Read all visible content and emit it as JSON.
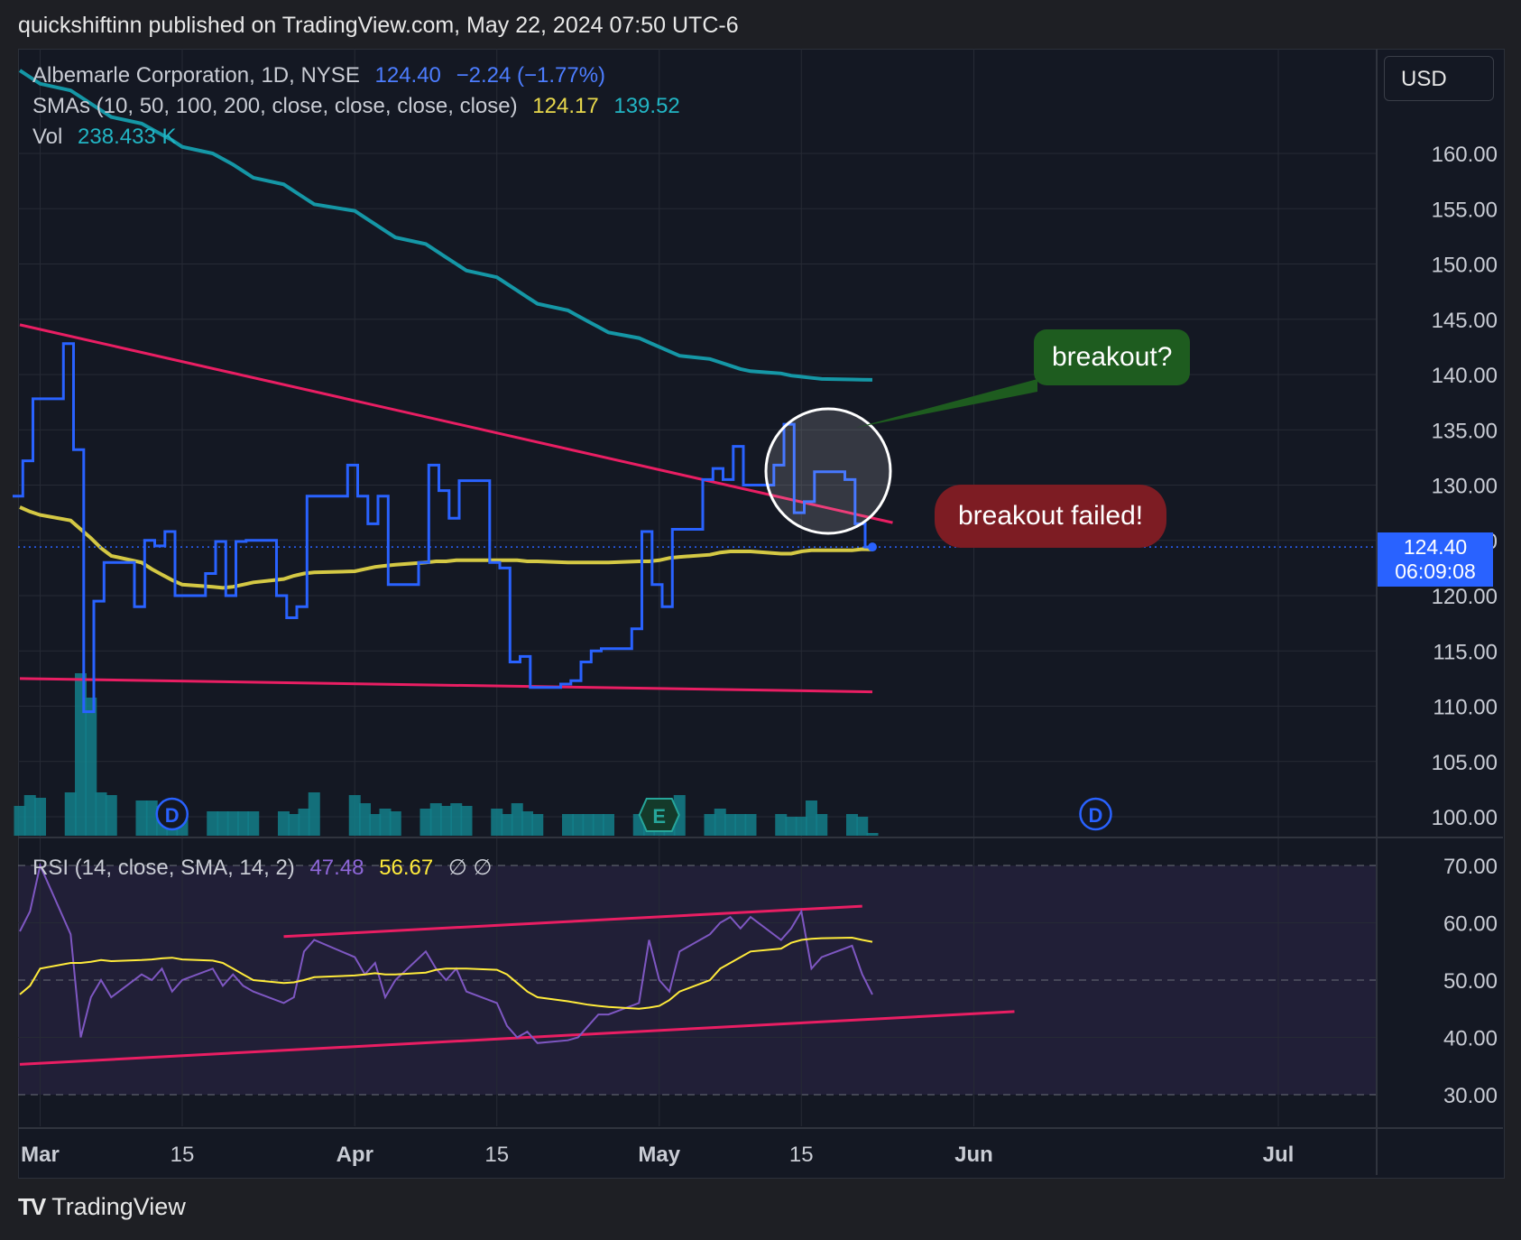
{
  "header": {
    "published": "quickshiftinn published on TradingView.com, May 22, 2024 07:50 UTC-6"
  },
  "legend": {
    "symbol": "Albemarle Corporation, 1D, NYSE",
    "price": "124.40",
    "change": "−2.24 (−1.77%)",
    "sma_label": "SMAs (10, 50, 100, 200, close, close, close, close)",
    "sma_val1": "124.17",
    "sma_val2": "139.52",
    "vol_label": "Vol",
    "vol_value": "238.433 K",
    "rsi_label": "RSI (14, close, SMA, 14, 2)",
    "rsi_val1": "47.48",
    "rsi_val2": "56.67",
    "rsi_extra": "∅ ∅"
  },
  "currency": "USD",
  "price_tag": {
    "price": "124.40",
    "countdown": "06:09:08"
  },
  "annotations": {
    "breakout_q": "breakout?",
    "breakout_failed": "breakout failed!"
  },
  "footer": {
    "brand": "TradingView"
  },
  "colors": {
    "price": "#2962ff",
    "sma_short": "#d4c844",
    "sma_long": "#1597a6",
    "trend": "#e91e63",
    "rsi": "#7e57c2",
    "rsi_ma": "#ffeb3b",
    "volume": "#137f8a"
  },
  "chart_data": [
    {
      "type": "line",
      "title": "Albemarle Corporation, 1D, NYSE",
      "x_ticks": [
        "Mar",
        "15",
        "Apr",
        "15",
        "May",
        "15",
        "Jun",
        "Jul"
      ],
      "x": [
        "2024-02-28",
        "2024-02-29",
        "2024-03-01",
        "2024-03-04",
        "2024-03-05",
        "2024-03-06",
        "2024-03-07",
        "2024-03-08",
        "2024-03-11",
        "2024-03-12",
        "2024-03-13",
        "2024-03-14",
        "2024-03-15",
        "2024-03-18",
        "2024-03-19",
        "2024-03-20",
        "2024-03-21",
        "2024-03-22",
        "2024-03-25",
        "2024-03-26",
        "2024-03-27",
        "2024-03-28",
        "2024-04-01",
        "2024-04-02",
        "2024-04-03",
        "2024-04-04",
        "2024-04-05",
        "2024-04-08",
        "2024-04-09",
        "2024-04-10",
        "2024-04-11",
        "2024-04-12",
        "2024-04-15",
        "2024-04-16",
        "2024-04-17",
        "2024-04-18",
        "2024-04-19",
        "2024-04-22",
        "2024-04-23",
        "2024-04-24",
        "2024-04-25",
        "2024-04-26",
        "2024-04-29",
        "2024-04-30",
        "2024-05-01",
        "2024-05-02",
        "2024-05-03",
        "2024-05-06",
        "2024-05-07",
        "2024-05-08",
        "2024-05-09",
        "2024-05-10",
        "2024-05-13",
        "2024-05-14",
        "2024-05-15",
        "2024-05-16",
        "2024-05-17",
        "2024-05-20",
        "2024-05-21",
        "2024-05-22"
      ],
      "y_ticks": [
        "100.00",
        "105.00",
        "110.00",
        "115.00",
        "120.00",
        "125.00",
        "130.00",
        "135.00",
        "140.00",
        "145.00",
        "150.00",
        "155.00",
        "160.00"
      ],
      "ylim": [
        98.8,
        168.5
      ],
      "series": [
        {
          "name": "Albemarle Corporation",
          "values": [
            129.0,
            132.2,
            137.8,
            142.8,
            133.2,
            109.5,
            119.5,
            123.0,
            119.0,
            125.0,
            124.5,
            125.8,
            120.0,
            122.0,
            124.9,
            120.0,
            124.9,
            125.0,
            120.0,
            118.0,
            119.0,
            129.0,
            131.8,
            129.0,
            126.5,
            129.0,
            121.0,
            123.0,
            131.8,
            129.5,
            127.0,
            130.4,
            123.0,
            122.5,
            114.0,
            114.5,
            111.7,
            112.0,
            112.3,
            114.0,
            115.0,
            115.2,
            117.0,
            125.8,
            121.0,
            119.0,
            126.0,
            130.5,
            131.5,
            130.5,
            133.5,
            130.0,
            131.8,
            135.5,
            127.5,
            128.5,
            131.2,
            130.5,
            126.5,
            124.4
          ]
        },
        {
          "name": "SMA",
          "values": [
            128.0,
            127.6,
            127.3,
            126.8,
            126.0,
            125.2,
            124.3,
            123.6,
            123.0,
            122.4,
            121.9,
            121.4,
            121.0,
            120.8,
            120.7,
            120.8,
            121.0,
            121.2,
            121.5,
            121.8,
            122.0,
            122.1,
            122.2,
            122.4,
            122.6,
            122.7,
            122.8,
            123.0,
            123.1,
            123.1,
            123.2,
            123.2,
            123.2,
            123.2,
            123.2,
            123.1,
            123.1,
            123.0,
            123.0,
            123.0,
            123.0,
            123.0,
            123.1,
            123.1,
            123.2,
            123.4,
            123.5,
            123.7,
            123.9,
            124.0,
            124.0,
            124.0,
            123.8,
            123.8,
            124.0,
            124.1,
            124.1,
            124.1,
            124.2,
            124.17
          ]
        },
        {
          "name": "SMA 200",
          "values": [
            167.5,
            166.9,
            166.3,
            165.7,
            165.1,
            164.5,
            163.9,
            163.3,
            162.7,
            162.2,
            161.7,
            161.2,
            160.6,
            160.0,
            159.5,
            159.0,
            158.4,
            157.8,
            157.2,
            156.6,
            156.0,
            155.4,
            154.8,
            154.2,
            153.6,
            153.0,
            152.4,
            151.8,
            151.2,
            150.6,
            150.0,
            149.4,
            148.8,
            148.2,
            147.6,
            147.0,
            146.4,
            145.8,
            145.3,
            144.8,
            144.3,
            143.8,
            143.3,
            142.9,
            142.5,
            142.1,
            141.7,
            141.4,
            141.1,
            140.8,
            140.5,
            140.3,
            140.1,
            139.9,
            139.8,
            139.7,
            139.6,
            139.55,
            139.53,
            139.52
          ]
        }
      ],
      "trendlines": [
        {
          "from": [
            "2024-02-28",
            144.5
          ],
          "to": [
            "2024-05-24",
            126.6
          ]
        },
        {
          "from": [
            "2024-02-28",
            112.5
          ],
          "to": [
            "2024-05-22",
            111.3
          ]
        }
      ]
    },
    {
      "type": "bar",
      "title": "Vol",
      "x": "same as price chart",
      "values": [
        55,
        75,
        70,
        80,
        300,
        255,
        80,
        75,
        65,
        65,
        55,
        55,
        40,
        45,
        45,
        45,
        45,
        45,
        45,
        40,
        50,
        80,
        75,
        60,
        40,
        50,
        45,
        50,
        60,
        55,
        60,
        55,
        50,
        40,
        60,
        45,
        40,
        40,
        40,
        40,
        40,
        40,
        40,
        35,
        65,
        60,
        75,
        40,
        50,
        40,
        40,
        40,
        40,
        35,
        35,
        65,
        40,
        40,
        35,
        5
      ],
      "ylim": [
        0,
        320
      ]
    },
    {
      "type": "line",
      "title": "RSI (14, close, SMA, 14, 2)",
      "y_ticks": [
        "30.00",
        "40.00",
        "50.00",
        "60.00",
        "70.00"
      ],
      "ylim": [
        25,
        73
      ],
      "series": [
        {
          "name": "RSI",
          "values": [
            58.5,
            62,
            70,
            58,
            40,
            47,
            50,
            47,
            51,
            50,
            52,
            48,
            50,
            52,
            49,
            51,
            49,
            48,
            46,
            47,
            55,
            57,
            54,
            51,
            53,
            47,
            50,
            55,
            52,
            50,
            52,
            48,
            46,
            42,
            40,
            41,
            39,
            39.5,
            40,
            42,
            44,
            44,
            46,
            57,
            50,
            48,
            55,
            58,
            60,
            61,
            59,
            61,
            57,
            59,
            62,
            52,
            54,
            56,
            51,
            47.48
          ]
        },
        {
          "name": "SMA",
          "values": [
            47.5,
            49,
            52,
            53,
            53,
            53.2,
            53.5,
            53.3,
            53.5,
            53.6,
            53.8,
            53.9,
            53.6,
            53.4,
            53,
            52,
            51,
            50,
            49.5,
            49.6,
            50,
            50.5,
            50.8,
            51,
            51.2,
            51,
            51,
            51.3,
            51.8,
            52,
            52,
            52,
            51.8,
            51,
            49.5,
            48,
            47,
            46.3,
            46,
            45.7,
            45.5,
            45.3,
            45,
            45.2,
            45.5,
            46.5,
            48,
            50,
            52,
            53,
            54,
            55,
            55.5,
            56.5,
            57,
            57.2,
            57.3,
            57.4,
            57,
            56.67
          ]
        }
      ],
      "trendlines": [
        {
          "from": [
            "2024-03-25",
            57.6
          ],
          "to": [
            "2024-05-21",
            62.9
          ]
        },
        {
          "from": [
            "2024-02-28",
            35.3
          ],
          "to": [
            "2024-06-05",
            44.5
          ]
        }
      ]
    }
  ]
}
